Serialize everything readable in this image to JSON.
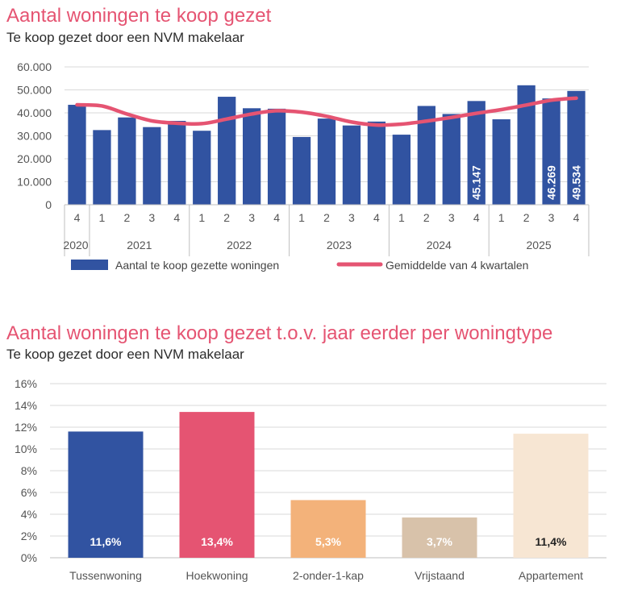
{
  "colors": {
    "title": "#e55472",
    "blue": "#3153a1",
    "pink": "#e55472",
    "grid": "#d9d9d9"
  },
  "chart1": {
    "title": "Aantal woningen te koop gezet",
    "subtitle": "Te koop gezet door een NVM makelaar"
  },
  "chart2": {
    "title": "Aantal woningen te koop gezet t.o.v. jaar eerder per woningtype",
    "subtitle": "Te koop gezet door een NVM makelaar"
  },
  "chart_data": [
    {
      "type": "bar",
      "title": "Aantal woningen te koop gezet",
      "subtitle": "Te koop gezet door een NVM makelaar",
      "quarters": [
        "4",
        "1",
        "2",
        "3",
        "4",
        "1",
        "2",
        "3",
        "4",
        "1",
        "2",
        "3",
        "4",
        "1",
        "2",
        "3",
        "4",
        "1",
        "2",
        "3",
        "4"
      ],
      "years": [
        {
          "label": "2020",
          "span": 1
        },
        {
          "label": "2021",
          "span": 4
        },
        {
          "label": "2022",
          "span": 4
        },
        {
          "label": "2023",
          "span": 4
        },
        {
          "label": "2024",
          "span": 4
        },
        {
          "label": "2025",
          "span": 4
        }
      ],
      "yticks": [
        "0",
        "10.000",
        "20.000",
        "30.000",
        "40.000",
        "50.000",
        "60.000"
      ],
      "ylim": [
        0,
        60000
      ],
      "series": [
        {
          "name": "Aantal te koop gezette woningen",
          "kind": "bar",
          "color": "#3153a1",
          "values": [
            43500,
            32500,
            38000,
            33800,
            36500,
            32200,
            47000,
            42000,
            41800,
            29500,
            37500,
            34500,
            36200,
            30500,
            43000,
            39500,
            45147,
            37200,
            52000,
            46269,
            49534
          ]
        },
        {
          "name": "Gemiddelde van 4 kwartalen",
          "kind": "line",
          "color": "#e55472",
          "values": [
            43500,
            43000,
            39500,
            36500,
            35500,
            35300,
            37300,
            39500,
            40900,
            40300,
            38500,
            36000,
            34700,
            35100,
            36400,
            38000,
            39800,
            41400,
            43400,
            45500,
            46400
          ]
        }
      ],
      "data_labels": [
        {
          "index": 16,
          "text": "45.147"
        },
        {
          "index": 19,
          "text": "46.269"
        },
        {
          "index": 20,
          "text": "49.534"
        }
      ]
    },
    {
      "type": "bar",
      "title": "Aantal woningen te koop gezet t.o.v. jaar eerder per woningtype",
      "subtitle": "Te koop gezet door een NVM makelaar",
      "categories": [
        "Tussenwoning",
        "Hoekwoning",
        "2-onder-1-kap",
        "Vrijstaand",
        "Appartement"
      ],
      "values": [
        11.6,
        13.4,
        5.3,
        3.7,
        11.4
      ],
      "labels": [
        "11,6%",
        "13,4%",
        "5,3%",
        "3,7%",
        "11,4%"
      ],
      "colors": [
        "#3153a1",
        "#e55472",
        "#f3b27a",
        "#d8c2aa",
        "#f7e6d3"
      ],
      "label_colors": [
        "#ffffff",
        "#ffffff",
        "#ffffff",
        "#ffffff",
        "#222222"
      ],
      "yticks": [
        "0%",
        "2%",
        "4%",
        "6%",
        "8%",
        "10%",
        "12%",
        "14%",
        "16%"
      ],
      "ylim": [
        0,
        16
      ]
    }
  ]
}
